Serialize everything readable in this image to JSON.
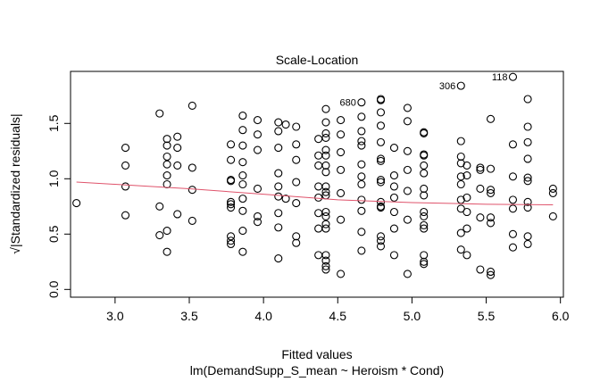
{
  "chart_data": {
    "type": "scatter",
    "title": "Scale-Location",
    "xlabel": "Fitted values",
    "subtitle": "lm(DemandSupp_S_mean ~ Heroism * Cond)",
    "ylabel": "√|Standardized residuals|",
    "xlim": [
      2.7,
      6.02
    ],
    "ylim": [
      -0.07,
      1.97
    ],
    "x_ticks": [
      3.0,
      3.5,
      4.0,
      4.5,
      5.0,
      5.5,
      6.0
    ],
    "x_tick_labels": [
      "3.0",
      "3.5",
      "4.0",
      "4.5",
      "5.0",
      "5.5",
      "6.0"
    ],
    "y_ticks": [
      0.0,
      0.5,
      1.0,
      1.5
    ],
    "y_tick_labels": [
      "0.0",
      "0.5",
      "1.0",
      "1.5"
    ],
    "grid": false,
    "point_color": "#000000",
    "smooth_color": "#DF536B",
    "columns": [
      {
        "x": 2.74,
        "y": [
          0.78
        ]
      },
      {
        "x": 3.07,
        "y": [
          1.28,
          1.12,
          0.93,
          0.67
        ]
      },
      {
        "x": 3.3,
        "y": [
          1.59,
          0.75,
          0.49
        ]
      },
      {
        "x": 3.35,
        "y": [
          1.36,
          1.3,
          1.2,
          1.13,
          1.03,
          0.95,
          0.53,
          0.34
        ]
      },
      {
        "x": 3.42,
        "y": [
          1.38,
          1.28,
          1.12,
          0.68
        ]
      },
      {
        "x": 3.52,
        "y": [
          1.66,
          1.1,
          0.9,
          0.62
        ]
      },
      {
        "x": 3.78,
        "y": [
          1.31,
          1.17,
          0.99,
          0.98,
          0.79,
          0.77,
          0.74,
          0.48,
          0.44,
          0.41
        ]
      },
      {
        "x": 3.86,
        "y": [
          1.57,
          1.44,
          1.3,
          1.15,
          1.03,
          0.95,
          0.82,
          0.71,
          0.53,
          0.34
        ]
      },
      {
        "x": 3.96,
        "y": [
          1.53,
          1.4,
          1.26,
          0.91,
          0.66,
          0.61
        ]
      },
      {
        "x": 4.1,
        "y": [
          1.51,
          1.43,
          1.28,
          1.05,
          0.93,
          0.84,
          0.69,
          0.56,
          0.28
        ]
      },
      {
        "x": 4.15,
        "y": [
          1.49,
          0.82
        ]
      },
      {
        "x": 4.22,
        "y": [
          1.47,
          1.31,
          1.17,
          0.97,
          0.78,
          0.48,
          0.42
        ]
      },
      {
        "x": 4.37,
        "y": [
          1.36,
          1.21,
          1.12,
          0.93,
          0.83,
          0.69,
          0.55,
          0.31
        ]
      },
      {
        "x": 4.42,
        "y": [
          1.63,
          1.51,
          1.41,
          1.37,
          1.26,
          1.21,
          1.12,
          1.06,
          0.93,
          0.88,
          0.85,
          0.7,
          0.66,
          0.59,
          0.55,
          0.31,
          0.26,
          0.21,
          0.18
        ]
      },
      {
        "x": 4.52,
        "y": [
          1.53,
          1.4,
          1.24,
          1.08,
          0.87,
          0.63,
          0.14
        ]
      },
      {
        "x": 4.66,
        "y": [
          1.69,
          1.56,
          1.43,
          1.34,
          1.3,
          1.13,
          1.02,
          0.95,
          0.81,
          0.71,
          0.52,
          0.35
        ]
      },
      {
        "x": 4.79,
        "y": [
          1.72,
          1.71,
          1.6,
          1.48,
          1.33,
          1.18,
          1.16,
          0.99,
          0.97,
          0.79,
          0.75,
          0.74,
          0.48,
          0.44,
          0.39
        ]
      },
      {
        "x": 4.88,
        "y": [
          1.28,
          1.03,
          0.93,
          0.83,
          0.7,
          0.55,
          0.31
        ]
      },
      {
        "x": 4.97,
        "y": [
          1.64,
          1.52,
          1.25,
          1.08,
          0.89,
          0.63,
          0.14
        ]
      },
      {
        "x": 5.08,
        "y": [
          1.42,
          1.41,
          1.22,
          1.21,
          1.12,
          1.05,
          0.91,
          0.85,
          0.7,
          0.66,
          0.58,
          0.55,
          0.31,
          0.25,
          0.23
        ]
      },
      {
        "x": 5.33,
        "y": [
          1.84,
          1.34,
          1.2,
          1.14,
          1.02,
          0.95,
          0.81,
          0.73,
          0.51,
          0.36
        ]
      },
      {
        "x": 5.37,
        "y": [
          1.12,
          1.03,
          0.83,
          0.7,
          0.55,
          0.31
        ]
      },
      {
        "x": 5.46,
        "y": [
          1.1,
          1.08,
          0.91,
          0.65,
          0.18
        ]
      },
      {
        "x": 5.53,
        "y": [
          1.54,
          1.09,
          0.9,
          0.87,
          0.65,
          0.6,
          0.16,
          0.13
        ]
      },
      {
        "x": 5.68,
        "y": [
          1.92,
          1.31,
          1.02,
          0.81,
          0.73,
          0.5,
          0.38
        ]
      },
      {
        "x": 5.78,
        "y": [
          1.72,
          1.47,
          1.33,
          1.18,
          1.01,
          0.98,
          0.79,
          0.74,
          0.48,
          0.41
        ]
      },
      {
        "x": 5.95,
        "y": [
          0.91,
          0.87,
          0.66
        ]
      }
    ],
    "annotations": [
      {
        "label": "680",
        "x": 4.66,
        "y": 1.69
      },
      {
        "label": "306",
        "x": 5.33,
        "y": 1.84
      },
      {
        "label": "118",
        "x": 5.68,
        "y": 1.92
      }
    ],
    "smooth": {
      "x": [
        2.74,
        3.0,
        3.5,
        4.0,
        4.5,
        5.0,
        5.5,
        5.95
      ],
      "y": [
        0.97,
        0.95,
        0.91,
        0.86,
        0.81,
        0.785,
        0.77,
        0.765
      ]
    }
  }
}
